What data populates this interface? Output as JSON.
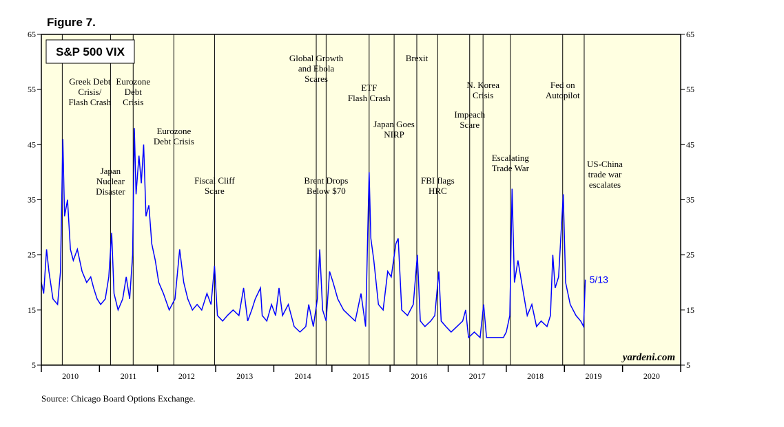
{
  "chart_data": {
    "type": "line",
    "title": "Figure 7.",
    "chart_label": "S&P 500 VIX",
    "source": "Source: Chicago Board Options Exchange.",
    "watermark": "yardeni.com",
    "last_label": "5/13",
    "xlim": [
      2010,
      2021
    ],
    "xticks": [
      2010,
      2011,
      2012,
      2013,
      2014,
      2015,
      2016,
      2017,
      2018,
      2019,
      2020
    ],
    "ylim": [
      5,
      65
    ],
    "yticks": [
      5,
      15,
      25,
      35,
      45,
      55,
      65
    ],
    "series": [
      {
        "name": "S&P 500 VIX",
        "color": "#0000ff",
        "x": [
          2010.0,
          2010.04,
          2010.09,
          2010.13,
          2010.2,
          2010.28,
          2010.33,
          2010.37,
          2010.4,
          2010.45,
          2010.5,
          2010.55,
          2010.62,
          2010.7,
          2010.78,
          2010.85,
          2010.9,
          2010.96,
          2011.02,
          2011.1,
          2011.16,
          2011.21,
          2011.25,
          2011.32,
          2011.4,
          2011.46,
          2011.52,
          2011.57,
          2011.6,
          2011.63,
          2011.68,
          2011.72,
          2011.76,
          2011.8,
          2011.85,
          2011.9,
          2011.96,
          2012.02,
          2012.1,
          2012.2,
          2012.3,
          2012.38,
          2012.45,
          2012.52,
          2012.6,
          2012.68,
          2012.76,
          2012.85,
          2012.92,
          2012.98,
          2013.03,
          2013.12,
          2013.2,
          2013.3,
          2013.4,
          2013.48,
          2013.55,
          2013.62,
          2013.68,
          2013.77,
          2013.8,
          2013.88,
          2013.96,
          2014.03,
          2014.09,
          2014.15,
          2014.25,
          2014.35,
          2014.45,
          2014.55,
          2014.6,
          2014.68,
          2014.75,
          2014.79,
          2014.84,
          2014.9,
          2014.96,
          2015.02,
          2015.1,
          2015.2,
          2015.3,
          2015.4,
          2015.5,
          2015.58,
          2015.64,
          2015.67,
          2015.72,
          2015.8,
          2015.88,
          2015.96,
          2016.02,
          2016.1,
          2016.14,
          2016.2,
          2016.3,
          2016.4,
          2016.47,
          2016.52,
          2016.6,
          2016.7,
          2016.77,
          2016.84,
          2016.88,
          2016.96,
          2017.05,
          2017.15,
          2017.25,
          2017.3,
          2017.35,
          2017.45,
          2017.55,
          2017.61,
          2017.66,
          2017.75,
          2017.85,
          2017.95,
          2018.0,
          2018.06,
          2018.1,
          2018.14,
          2018.2,
          2018.28,
          2018.36,
          2018.44,
          2018.52,
          2018.6,
          2018.7,
          2018.76,
          2018.8,
          2018.84,
          2018.9,
          2018.98,
          2019.02,
          2019.1,
          2019.2,
          2019.28,
          2019.33,
          2019.36
        ],
        "values": [
          20,
          18,
          26,
          22,
          17,
          16,
          22,
          46,
          32,
          35,
          26,
          24,
          26,
          22,
          20,
          21,
          19,
          17,
          16,
          17,
          21,
          29,
          18,
          15,
          17,
          21,
          17,
          25,
          48,
          36,
          43,
          38,
          45,
          32,
          34,
          27,
          24,
          20,
          18,
          15,
          17,
          26,
          20,
          17,
          15,
          16,
          15,
          18,
          16,
          23,
          14,
          13,
          14,
          15,
          14,
          19,
          13,
          15,
          17,
          19,
          14,
          13,
          16,
          14,
          19,
          14,
          16,
          12,
          11,
          12,
          16,
          12,
          17,
          26,
          15,
          13,
          22,
          20,
          17,
          15,
          14,
          13,
          18,
          12,
          40,
          28,
          24,
          16,
          15,
          22,
          21,
          27,
          28,
          15,
          14,
          16,
          25,
          13,
          12,
          13,
          14,
          22,
          13,
          12,
          11,
          12,
          13,
          15,
          10,
          11,
          10,
          16,
          10,
          10,
          10,
          10,
          11,
          14,
          37,
          20,
          24,
          19,
          14,
          16,
          12,
          13,
          12,
          14,
          25,
          19,
          21,
          36,
          20,
          16,
          14,
          13,
          12,
          20.5
        ]
      }
    ],
    "annotations": [
      {
        "x": 2010.36,
        "text": [
          "Greek Debt",
          "Crisis/",
          "Flash Crash"
        ]
      },
      {
        "x": 2011.19,
        "text": [
          "Japan",
          "Nuclear",
          "Disaster"
        ]
      },
      {
        "x": 2011.58,
        "text": [
          "Eurozone",
          "Debt",
          "Crisis"
        ]
      },
      {
        "x": 2012.28,
        "text": [
          "Eurozone",
          "Debt Crisis"
        ]
      },
      {
        "x": 2012.98,
        "text": [
          "Fiscal Cliff",
          "Scare"
        ]
      },
      {
        "x": 2014.73,
        "text": [
          "Global Growth",
          "and Ebola",
          "Scares"
        ]
      },
      {
        "x": 2014.9,
        "text": [
          "Brent Drops",
          "Below $70"
        ]
      },
      {
        "x": 2015.64,
        "text": [
          "ETF",
          "Flash Crash"
        ]
      },
      {
        "x": 2016.07,
        "text": [
          "Japan Goes",
          "NIRP"
        ]
      },
      {
        "x": 2016.46,
        "text": [
          "Brexit"
        ]
      },
      {
        "x": 2016.82,
        "text": [
          "FBI flags",
          "HRC"
        ]
      },
      {
        "x": 2017.37,
        "text": [
          "Impeach",
          "Scare"
        ]
      },
      {
        "x": 2017.6,
        "text": [
          "N. Korea",
          "Crisis"
        ]
      },
      {
        "x": 2018.07,
        "text": [
          "Escalating",
          "Trade War"
        ]
      },
      {
        "x": 2018.97,
        "text": [
          "Fed on",
          "Autopilot"
        ]
      },
      {
        "x": 2019.34,
        "text": [
          "US-China",
          "trade war",
          "escalates"
        ]
      }
    ]
  }
}
